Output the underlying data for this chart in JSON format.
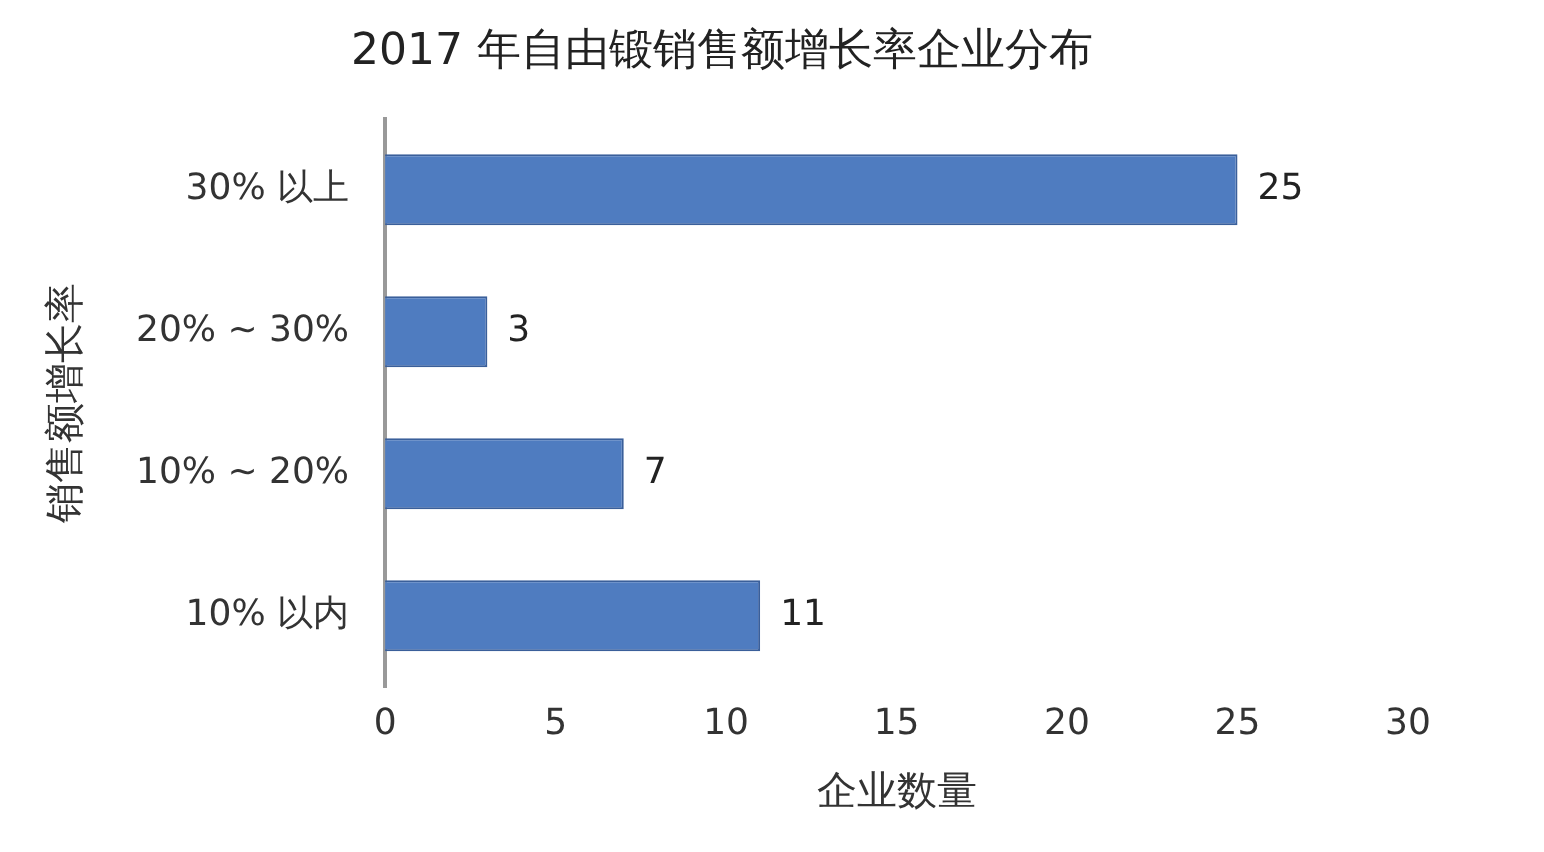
{
  "chart_data": {
    "type": "bar",
    "orientation": "horizontal",
    "title": "2017 年自由锻销售额增长率企业分布",
    "xlabel": "企业数量",
    "ylabel": "销售额增长率",
    "categories": [
      "30% 以上",
      "20% ~ 30%",
      "10% ~ 20%",
      "10% 以内"
    ],
    "values": [
      25,
      3,
      7,
      11
    ],
    "color": "#4f7cc0",
    "xlim": [
      0,
      30
    ],
    "xticks": [
      0,
      5,
      10,
      15,
      20,
      25,
      30
    ],
    "grid": false,
    "data_labels": true,
    "legend": false
  }
}
